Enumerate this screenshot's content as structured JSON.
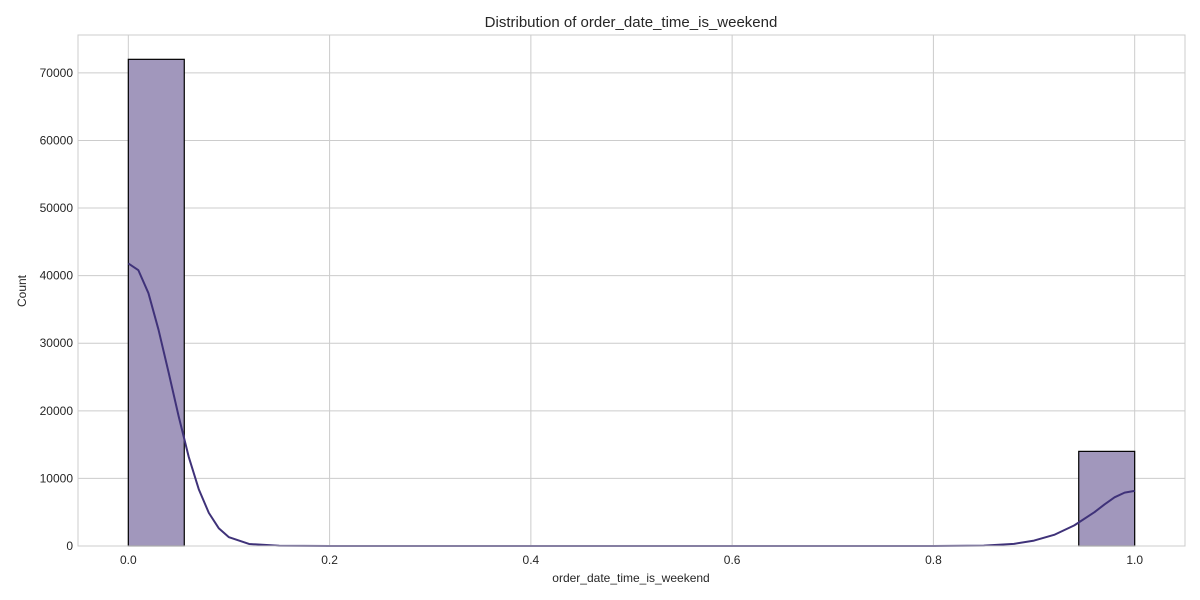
{
  "chart_data": {
    "type": "bar",
    "subtype": "histogram-with-kde",
    "title": "Distribution of order_date_time_is_weekend",
    "xlabel": "order_date_time_is_weekend",
    "ylabel": "Count",
    "xlim": [
      -0.05,
      1.05
    ],
    "ylim": [
      0,
      75600
    ],
    "grid": true,
    "x_ticks": [
      0.0,
      0.2,
      0.4,
      0.6,
      0.8,
      1.0
    ],
    "x_tick_labels": [
      "0.0",
      "0.2",
      "0.4",
      "0.6",
      "0.8",
      "1.0"
    ],
    "y_ticks": [
      0,
      10000,
      20000,
      30000,
      40000,
      50000,
      60000,
      70000
    ],
    "y_tick_labels": [
      "0",
      "10000",
      "20000",
      "30000",
      "40000",
      "50000",
      "60000",
      "70000"
    ],
    "bins": [
      {
        "x0": 0.0,
        "x1": 0.0556,
        "count": 72000
      },
      {
        "x0": 0.9444,
        "x1": 1.0,
        "count": 14000
      }
    ],
    "kde": {
      "x": [
        0.0,
        0.01,
        0.02,
        0.03,
        0.04,
        0.05,
        0.06,
        0.07,
        0.08,
        0.09,
        0.1,
        0.12,
        0.15,
        0.2,
        0.4,
        0.6,
        0.8,
        0.85,
        0.88,
        0.9,
        0.92,
        0.94,
        0.96,
        0.97,
        0.98,
        0.99,
        1.0
      ],
      "y": [
        41800,
        40800,
        37400,
        32000,
        25700,
        19200,
        13200,
        8400,
        4900,
        2600,
        1300,
        300,
        30,
        0,
        0,
        0,
        0,
        60,
        320,
        800,
        1650,
        3050,
        5000,
        6150,
        7200,
        7900,
        8150
      ]
    },
    "colors": {
      "bar_fill": "#a197bc",
      "bar_edge": "#000000",
      "kde_line": "#3f3279",
      "grid": "#cccccc",
      "frame": "#cccccc"
    }
  }
}
